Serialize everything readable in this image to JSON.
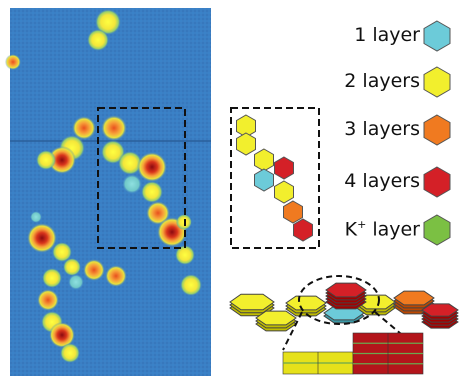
{
  "legend": {
    "items": [
      {
        "label": "1 layer",
        "color": "#6ccbd9"
      },
      {
        "label": "2 layers",
        "color": "#f2ef2d"
      },
      {
        "label": "3 layers",
        "color": "#f07a20"
      },
      {
        "label": "4 layers",
        "color": "#d42027"
      },
      {
        "label": "K",
        "superscript": "+",
        "suffix": " layer",
        "color": "#7bc043"
      }
    ]
  },
  "colors": {
    "afm_background": "#3b7fc4",
    "dashed_box": "#111111",
    "layer_yellow": "#e6e11a",
    "layer_red": "#b3151b",
    "layer_stripe": "#6aa84f"
  }
}
